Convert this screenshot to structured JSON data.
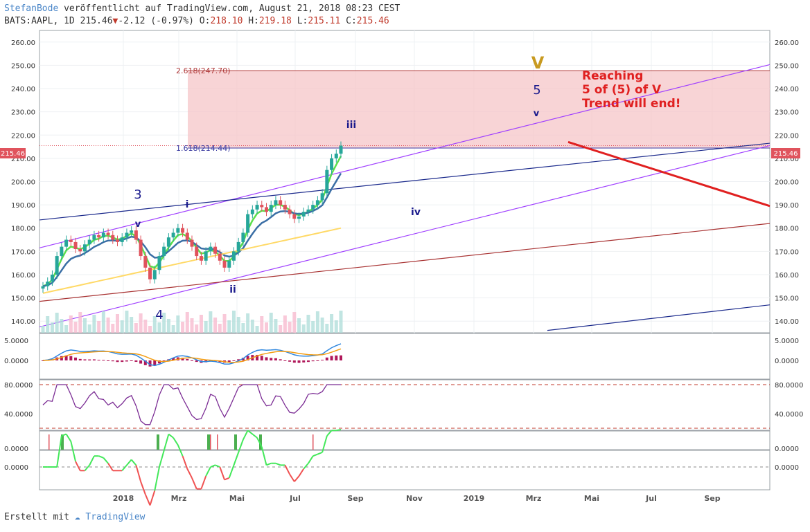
{
  "header": {
    "author": "StefanBode",
    "published": "veröffentlicht auf TradingView.com, August 21, 2018 08:23 CEST",
    "symbol": "BATS:AAPL, 1D",
    "last": "215.46",
    "change": "-2.12 (-0.97%)",
    "open_label": "O:",
    "open": "218.10",
    "high_label": "H:",
    "high": "219.18",
    "low_label": "L:",
    "low": "215.11",
    "close_label": "C:",
    "close": "215.46"
  },
  "footer": {
    "created_with": "Erstellt mit",
    "brand": "TradingView"
  },
  "colors": {
    "up": "#e0535d",
    "down": "#e0535d",
    "grid": "#eef0f3",
    "wave_blue": "#1a1a8c",
    "fib_zone": "#f5c6c8",
    "fib_line": "#b03a3a",
    "purple_channel": "#a040ff",
    "navy_line": "#1b2a8c",
    "brown_line": "#a83232",
    "red_arrow": "#e02020",
    "ema_fast": "#5be04a",
    "ema_slow": "#3a6ea5",
    "sma200": "#ffd966",
    "macd_line": "#2e86de",
    "signal_line": "#f39c12",
    "hist": "#b0185a",
    "rsi": "#7b2c94"
  },
  "chart_data": {
    "type": "candlestick",
    "title": "BATS:AAPL, 1D",
    "price_axis": {
      "ylim": [
        135,
        265
      ],
      "ticks": [
        "260.00",
        "250.00",
        "240.00",
        "230.00",
        "220.00",
        "210.00",
        "200.00",
        "190.00",
        "180.00",
        "170.00",
        "160.00",
        "150.00",
        "140.00"
      ]
    },
    "time_axis": {
      "labels": [
        "2018",
        "Mrz",
        "Mai",
        "Jul",
        "Sep",
        "Nov",
        "2019",
        "Mrz",
        "Mai",
        "Jul",
        "Sep"
      ]
    },
    "last_price_label": "215.46",
    "closes_approx": [
      155,
      157,
      160,
      168,
      172,
      175,
      174,
      171,
      170,
      173,
      175,
      177,
      176,
      178,
      177,
      175,
      174,
      176,
      178,
      179,
      175,
      168,
      163,
      158,
      162,
      168,
      172,
      176,
      178,
      180,
      178,
      175,
      172,
      168,
      166,
      170,
      172,
      169,
      166,
      163,
      166,
      170,
      174,
      178,
      186,
      188,
      190,
      189,
      187,
      190,
      192,
      190,
      188,
      186,
      184,
      185,
      187,
      188,
      190,
      192,
      195,
      205,
      210,
      212,
      215.46
    ],
    "fib_levels": [
      {
        "label": "2.618(247.70)",
        "value": 247.7
      },
      {
        "label": "1.618(214.44)",
        "value": 214.44
      }
    ],
    "wave_labels": [
      {
        "text": "V",
        "price": 255
      },
      {
        "text": "5",
        "price": 243
      },
      {
        "text": "v",
        "price": 233
      },
      {
        "text": "iii",
        "price": 228
      },
      {
        "text": "3",
        "price": 198
      },
      {
        "text": "i",
        "price": 193
      },
      {
        "text": "iv",
        "price": 190
      },
      {
        "text": "v",
        "price": 184
      },
      {
        "text": "ii",
        "price": 156
      },
      {
        "text": "4",
        "price": 146
      }
    ],
    "annotation": [
      "Reaching",
      "5 of (5) of V",
      "Trend will end!"
    ],
    "macd_panel": {
      "ticks": [
        "5.0000",
        "0.0000"
      ]
    },
    "rsi_panel": {
      "ticks": [
        "80.0000",
        "40.0000"
      ]
    },
    "signal_panel": {
      "ticks": [
        "0.0000"
      ]
    },
    "osc_panel": {
      "ticks": [
        "0.0000"
      ]
    }
  }
}
